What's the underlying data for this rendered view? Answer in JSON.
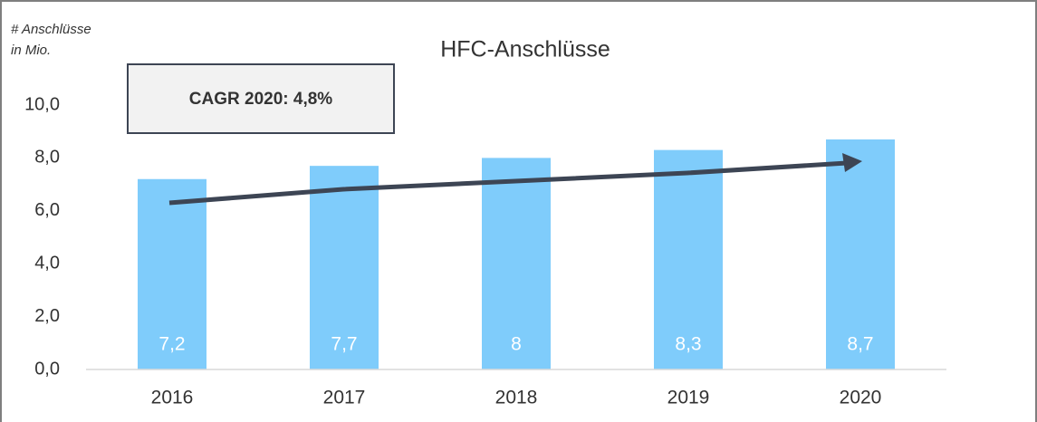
{
  "chart_data": {
    "type": "bar",
    "title": "HFC-Anschlüsse",
    "y_label": [
      "# Anschlüsse",
      "in Mio."
    ],
    "annotation": "CAGR 2020: 4,8%",
    "categories": [
      "2016",
      "2017",
      "2018",
      "2019",
      "2020"
    ],
    "values": [
      7.2,
      7.7,
      8,
      8.3,
      8.7
    ],
    "value_labels": [
      "7,2",
      "7,7",
      "8",
      "8,3",
      "8,7"
    ],
    "color": "#7fccfb",
    "ylim": [
      0,
      10
    ],
    "yticks": [
      {
        "value": 0,
        "label": "0,0"
      },
      {
        "value": 2,
        "label": "2,0"
      },
      {
        "value": 4,
        "label": "4,0"
      },
      {
        "value": 6,
        "label": "6,0"
      },
      {
        "value": 8,
        "label": "8,0"
      },
      {
        "value": 10,
        "label": "10,0"
      }
    ],
    "grid": false
  }
}
